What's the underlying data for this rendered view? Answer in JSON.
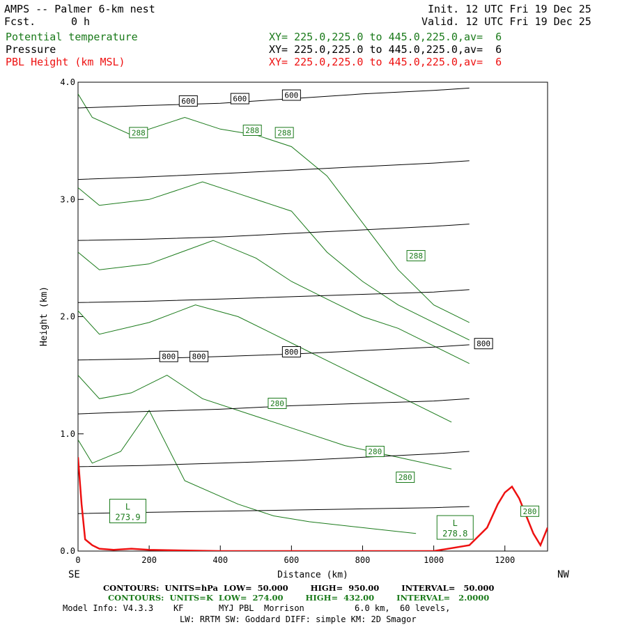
{
  "header": {
    "title": "AMPS -- Palmer 6-km nest",
    "fcst_label": "Fcst.",
    "fcst_value": "0 h",
    "init": "Init. 12 UTC Fri 19 Dec 25",
    "valid": "Valid. 12 UTC Fri 19 Dec 25",
    "fields": [
      {
        "name": "Potential temperature",
        "xy": "XY= 225.0,225.0 to 445.0,225.0,av=  6",
        "color": "#1a7a1a"
      },
      {
        "name": "Pressure",
        "xy": "XY= 225.0,225.0 to 445.0,225.0,av=  6",
        "color": "#000000"
      },
      {
        "name": "PBL Height (km MSL)",
        "xy": "XY= 225.0,225.0 to 445.0,225.0,av=  6",
        "color": "#ee1111"
      }
    ]
  },
  "chart_data": {
    "type": "line",
    "title": "AMPS -- Palmer 6-km nest",
    "xlabel": "Distance (km)",
    "ylabel": "Height (km)",
    "xlim": [
      0,
      1320
    ],
    "ylim": [
      0,
      4
    ],
    "x_ticks": [
      0,
      200,
      400,
      600,
      800,
      1000,
      1200
    ],
    "x_tick_labels": [
      "0",
      "200",
      "400",
      "600",
      "800",
      "1000",
      "1200"
    ],
    "y_ticks": [
      0,
      1,
      2,
      3,
      4
    ],
    "y_tick_labels": [
      "0.0",
      "1.0",
      "2.0",
      "3.0",
      "4.0"
    ],
    "left_end_label": "SE",
    "right_end_label": "NW",
    "pressure_contours": {
      "color": "#000000",
      "series": [
        {
          "name": "",
          "x": [
            0,
            180,
            400,
            600,
            800,
            1000,
            1100
          ],
          "y": [
            0.32,
            0.33,
            0.34,
            0.35,
            0.36,
            0.37,
            0.38
          ]
        },
        {
          "name": "",
          "x": [
            0,
            180,
            400,
            600,
            800,
            1000,
            1100
          ],
          "y": [
            0.72,
            0.73,
            0.75,
            0.77,
            0.8,
            0.83,
            0.85
          ]
        },
        {
          "name": "",
          "x": [
            0,
            180,
            400,
            600,
            800,
            1000,
            1100
          ],
          "y": [
            1.17,
            1.19,
            1.21,
            1.24,
            1.26,
            1.28,
            1.3
          ]
        },
        {
          "name": "800",
          "x": [
            0,
            180,
            400,
            600,
            800,
            1000,
            1100
          ],
          "y": [
            1.63,
            1.64,
            1.66,
            1.68,
            1.71,
            1.74,
            1.76
          ]
        },
        {
          "name": "",
          "x": [
            0,
            180,
            400,
            600,
            800,
            1000,
            1100
          ],
          "y": [
            2.12,
            2.13,
            2.15,
            2.17,
            2.19,
            2.21,
            2.23
          ]
        },
        {
          "name": "",
          "x": [
            0,
            180,
            400,
            600,
            800,
            1000,
            1100
          ],
          "y": [
            2.65,
            2.66,
            2.68,
            2.71,
            2.74,
            2.77,
            2.79
          ]
        },
        {
          "name": "",
          "x": [
            0,
            180,
            400,
            600,
            800,
            1000,
            1100
          ],
          "y": [
            3.17,
            3.19,
            3.22,
            3.25,
            3.28,
            3.31,
            3.33
          ]
        },
        {
          "name": "600",
          "x": [
            0,
            180,
            400,
            600,
            800,
            1000,
            1100
          ],
          "y": [
            3.78,
            3.8,
            3.82,
            3.86,
            3.9,
            3.93,
            3.95
          ]
        }
      ],
      "labels": [
        {
          "text": "600",
          "x": 310,
          "y": 3.84
        },
        {
          "text": "600",
          "x": 455,
          "y": 3.86
        },
        {
          "text": "600",
          "x": 600,
          "y": 3.89
        },
        {
          "text": "800",
          "x": 255,
          "y": 1.66
        },
        {
          "text": "800",
          "x": 340,
          "y": 1.66
        },
        {
          "text": "800",
          "x": 600,
          "y": 1.7
        },
        {
          "text": "800",
          "x": 1140,
          "y": 1.77
        }
      ]
    },
    "theta_contours": {
      "color": "#1a7a1a",
      "series": [
        {
          "name": "",
          "x": [
            0,
            40,
            150,
            300,
            400,
            500,
            600,
            700,
            800,
            900,
            1000,
            1100
          ],
          "y": [
            3.9,
            3.7,
            3.55,
            3.7,
            3.6,
            3.55,
            3.45,
            3.2,
            2.8,
            2.4,
            2.1,
            1.95
          ]
        },
        {
          "name": "",
          "x": [
            0,
            60,
            200,
            350,
            450,
            600,
            700,
            800,
            900,
            1000,
            1100
          ],
          "y": [
            3.1,
            2.95,
            3.0,
            3.15,
            3.05,
            2.9,
            2.55,
            2.3,
            2.1,
            1.95,
            1.8
          ]
        },
        {
          "name": "",
          "x": [
            0,
            60,
            200,
            380,
            500,
            600,
            700,
            800,
            900,
            1000,
            1100
          ],
          "y": [
            2.55,
            2.4,
            2.45,
            2.65,
            2.5,
            2.3,
            2.15,
            2.0,
            1.9,
            1.75,
            1.6
          ]
        },
        {
          "name": "",
          "x": [
            0,
            60,
            200,
            330,
            450,
            550,
            650,
            750,
            850,
            950,
            1050
          ],
          "y": [
            2.05,
            1.85,
            1.95,
            2.1,
            2.0,
            1.85,
            1.7,
            1.55,
            1.4,
            1.25,
            1.1
          ]
        },
        {
          "name": "",
          "x": [
            0,
            60,
            150,
            250,
            350,
            500,
            600,
            750,
            900,
            1050
          ],
          "y": [
            1.5,
            1.3,
            1.35,
            1.5,
            1.3,
            1.15,
            1.05,
            0.9,
            0.8,
            0.7
          ]
        },
        {
          "name": "",
          "x": [
            0,
            40,
            120,
            200,
            300,
            450,
            550,
            650,
            800,
            950
          ],
          "y": [
            0.95,
            0.75,
            0.85,
            1.2,
            0.6,
            0.4,
            0.3,
            0.25,
            0.2,
            0.15
          ]
        }
      ],
      "labels": [
        {
          "text": "288",
          "x": 170,
          "y": 3.57
        },
        {
          "text": "288",
          "x": 490,
          "y": 3.59
        },
        {
          "text": "288",
          "x": 580,
          "y": 3.57
        },
        {
          "text": "288",
          "x": 950,
          "y": 2.52
        },
        {
          "text": "280",
          "x": 560,
          "y": 1.26
        },
        {
          "text": "280",
          "x": 835,
          "y": 0.85
        },
        {
          "text": "280",
          "x": 920,
          "y": 0.63
        },
        {
          "text": "280",
          "x": 1270,
          "y": 0.34
        }
      ]
    },
    "pbl_height": {
      "color": "#ee1111",
      "x": [
        0,
        10,
        20,
        40,
        60,
        100,
        150,
        200,
        400,
        800,
        1000,
        1100,
        1150,
        1180,
        1200,
        1220,
        1240,
        1260,
        1280,
        1300,
        1320
      ],
      "y": [
        0.8,
        0.4,
        0.1,
        0.05,
        0.02,
        0.01,
        0.02,
        0.01,
        0.0,
        0.0,
        0.0,
        0.05,
        0.2,
        0.4,
        0.5,
        0.55,
        0.45,
        0.3,
        0.15,
        0.05,
        0.2
      ]
    },
    "low_centers": [
      {
        "letter": "L",
        "value": "273.9",
        "x": 140,
        "y": 0.3
      },
      {
        "letter": "L",
        "value": "278.8",
        "x": 1060,
        "y": 0.16
      }
    ]
  },
  "footer": {
    "line1": "CONTOURS:  UNITS=hPa  LOW=  50.000        HIGH=  950.00        INTERVAL=   50.000",
    "line2": "CONTOURS:  UNITS=K  LOW=  274.00        HIGH=  432.00        INTERVAL=   2.0000",
    "line3": "Model Info: V4.3.3    KF       MYJ PBL  Morrison          6.0 km,  60 levels,",
    "line4": "LW: RRTM SW: Goddard DIFF: simple KM: 2D Smagor"
  }
}
